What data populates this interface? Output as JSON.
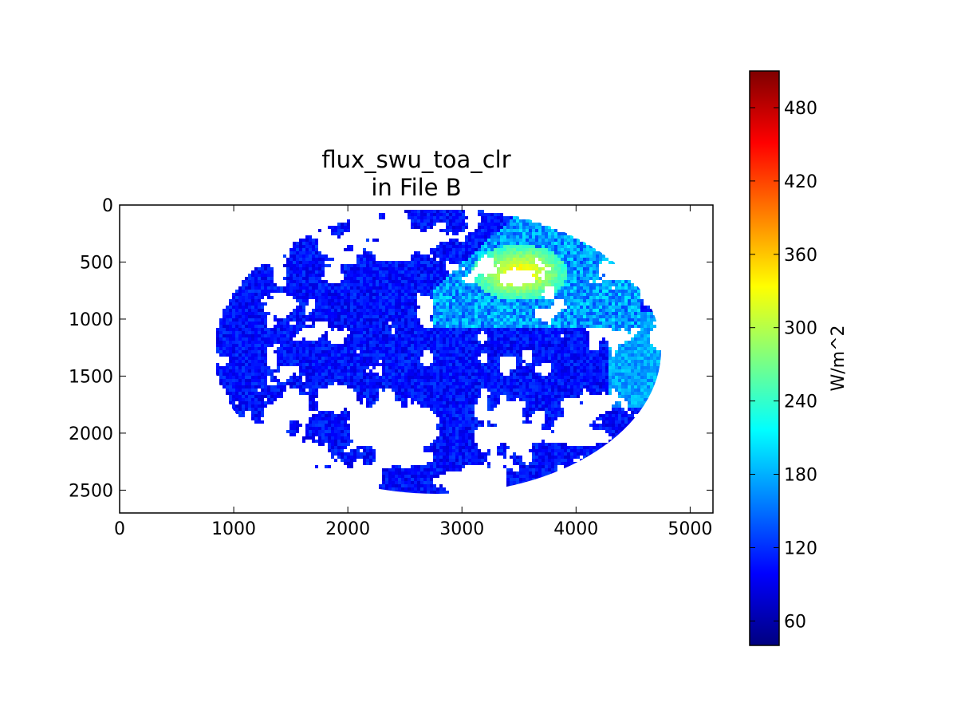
{
  "chart_data": {
    "type": "heatmap",
    "title": "flux_swu_toa_clr",
    "subtitle": "in File B",
    "xlabel": "",
    "ylabel": "",
    "xlim": [
      0,
      5200
    ],
    "ylim": [
      2700,
      0
    ],
    "x_ticks": [
      "0",
      "1000",
      "2000",
      "3000",
      "4000",
      "5000"
    ],
    "y_ticks": [
      "0",
      "500",
      "1000",
      "1500",
      "2000",
      "2500"
    ],
    "grid": false,
    "colormap": "jet",
    "colorbar": {
      "label": "W/m^2",
      "range": [
        40,
        510
      ],
      "ticks": [
        "60",
        "120",
        "180",
        "240",
        "300",
        "360",
        "420",
        "480"
      ]
    },
    "content": "full-disk Earth image in pixel coordinates; clear-sky pixels mostly 60-150 W/m^2 (blue), higher values 180-330 W/m^2 over North America, cloudy pixels masked (white)"
  },
  "colors": {
    "jet_stops": [
      "#00007f",
      "#0000ff",
      "#007fff",
      "#00ffff",
      "#7fff7f",
      "#ffff00",
      "#ff7f00",
      "#ff0000",
      "#7f0000"
    ],
    "axes": "#000000",
    "background": "#ffffff"
  }
}
